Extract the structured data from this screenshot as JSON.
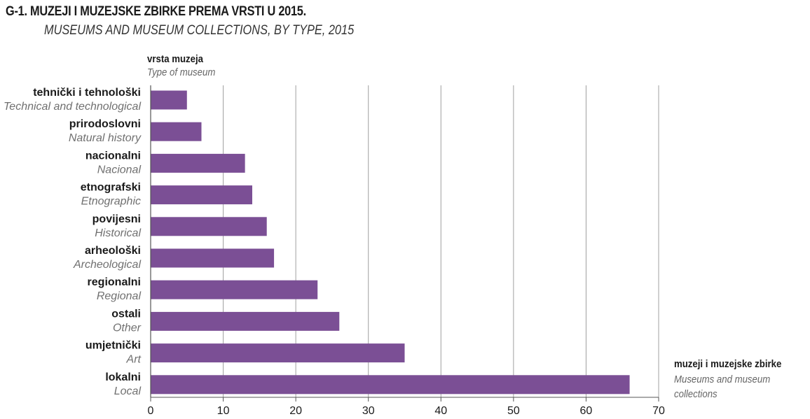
{
  "title": "G-1. MUZEJI I MUZEJSKE ZBIRKE PREMA VRSTI U 2015.",
  "subtitle": "MUSEUMS AND MUSEUM COLLECTIONS, BY TYPE, 2015",
  "y_axis_title": "vrsta muzeja",
  "y_axis_title_en": "Type of museum",
  "x_axis_title": "muzeji i muzejske zbirke",
  "x_axis_title_en": "Museums and museum collections",
  "colors": {
    "bar": "#7b4f95",
    "grid": "#a0a0a0",
    "axis": "#555555"
  },
  "chart_data": {
    "type": "bar",
    "orientation": "horizontal",
    "title": "G-1. MUZEJI I MUZEJSKE ZBIRKE PREMA VRSTI U 2015.",
    "subtitle": "MUSEUMS AND MUSEUM COLLECTIONS, BY TYPE, 2015",
    "categories": [
      "tehnički i tehnološki",
      "prirodoslovni",
      "nacionalni",
      "etnografski",
      "povijesni",
      "arheološki",
      "regionalni",
      "ostali",
      "umjetnički",
      "lokalni"
    ],
    "categories_en": [
      "Technical and technological",
      "Natural history",
      "Nacional",
      "Etnographic",
      "Historical",
      "Archeological",
      "Regional",
      "Other",
      "Art",
      "Local"
    ],
    "values": [
      5,
      7,
      13,
      14,
      16,
      17,
      23,
      26,
      35,
      66
    ],
    "xlim": [
      0,
      70
    ],
    "xticks": [
      0,
      10,
      20,
      30,
      40,
      50,
      60,
      70
    ],
    "xlabel": "muzeji i muzejske zbirke",
    "ylabel": "vrsta muzeja",
    "grid": "vertical"
  }
}
